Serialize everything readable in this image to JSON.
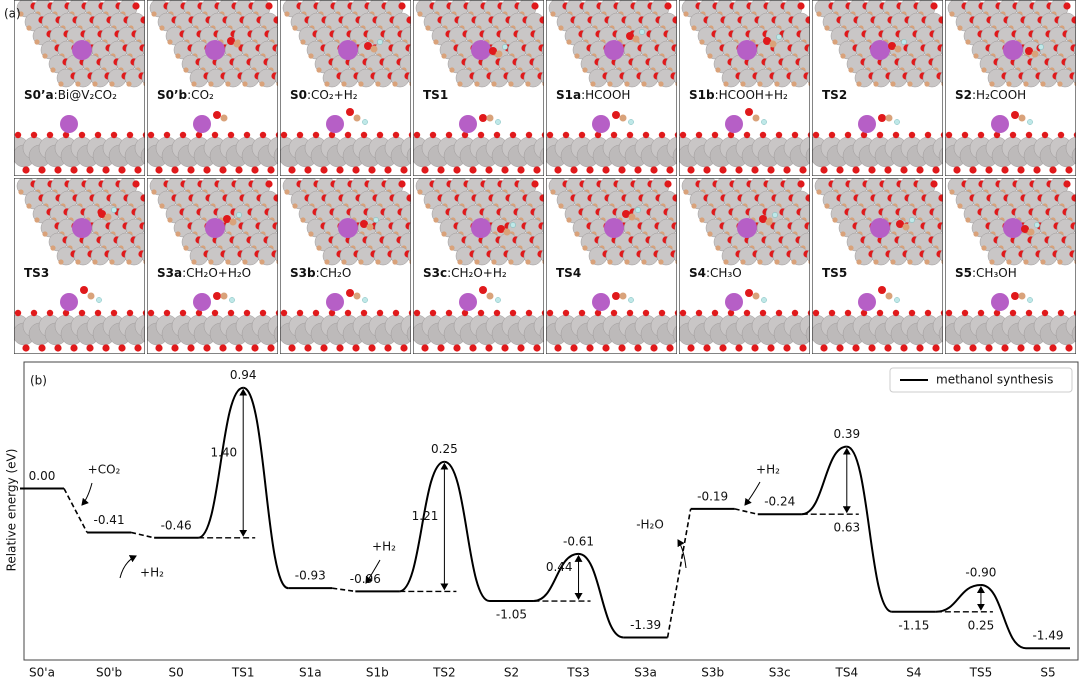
{
  "panel_a": {
    "label": "(a)",
    "panels": [
      {
        "name": "S0’a",
        "formula": ":Bi@V₂CO₂"
      },
      {
        "name": "S0’b",
        "formula": ":CO₂"
      },
      {
        "name": "S0",
        "formula": ":CO₂+H₂"
      },
      {
        "name": "TS1"
      },
      {
        "name": "S1a",
        "formula": ":HCOOH"
      },
      {
        "name": "S1b",
        "formula": ":HCOOH+H₂"
      },
      {
        "name": "TS2"
      },
      {
        "name": "S2",
        "formula": ":H₂COOH"
      },
      {
        "name": "TS3"
      },
      {
        "name": "S3a",
        "formula": ":CH₂O+H₂O"
      },
      {
        "name": "S3b",
        "formula": ":CH₂O"
      },
      {
        "name": "S3c",
        "formula": ":CH₂O+H₂"
      },
      {
        "name": "TS4"
      },
      {
        "name": "S4",
        "formula": ":CH₃O"
      },
      {
        "name": "TS5"
      },
      {
        "name": "S5",
        "formula": ":CH₃OH"
      }
    ]
  },
  "chart_data": {
    "type": "energy_profile",
    "label": "(b)",
    "ylabel": "Relative energy (eV)",
    "categories": [
      "S0'a",
      "S0'b",
      "S0",
      "TS1",
      "S1a",
      "S1b",
      "TS2",
      "S2",
      "TS3",
      "S3a",
      "S3b",
      "S3c",
      "TS4",
      "S4",
      "TS5",
      "S5"
    ],
    "series": [
      {
        "name": "methanol synthesis",
        "color": "#000000",
        "values": [
          0.0,
          -0.41,
          -0.46,
          0.94,
          -0.93,
          -0.96,
          0.25,
          -1.05,
          -0.61,
          -1.39,
          -0.19,
          -0.24,
          0.39,
          -1.15,
          -0.9,
          -1.49
        ],
        "value_labels": [
          "0.00",
          "-0.41",
          "-0.46",
          "0.94",
          "-0.93",
          "-0.96",
          "0.25",
          "-1.05",
          "-0.61",
          "-1.39",
          "-0.19",
          "-0.24",
          "0.39",
          "-1.15",
          "-0.90",
          "-1.49"
        ]
      }
    ],
    "barriers": {
      "categories": [
        "TS1",
        "TS2",
        "TS3",
        "TS4",
        "TS5"
      ],
      "values": [
        1.4,
        1.21,
        0.44,
        0.63,
        0.25
      ],
      "value_labels": [
        "1.40",
        "1.21",
        "0.44",
        "0.63",
        "0.25"
      ]
    },
    "annotations": [
      "+CO₂",
      "+H₂",
      "+H₂",
      "-H₂O",
      "+H₂"
    ],
    "ylim": [
      -1.6,
      1.18
    ],
    "legend": "upper right"
  }
}
